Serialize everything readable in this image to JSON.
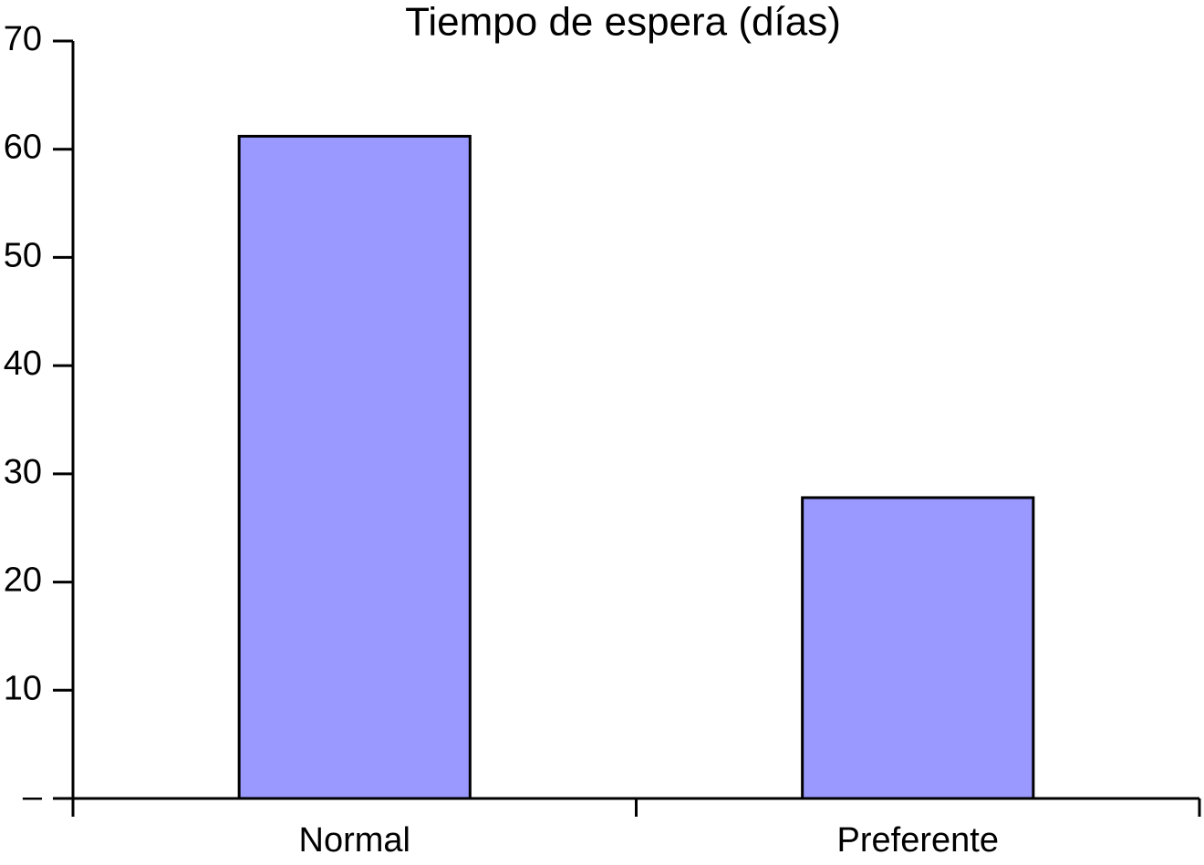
{
  "chart_data": {
    "type": "bar",
    "title": "Tiempo de espera (días)",
    "categories": [
      "Normal",
      "Preferente"
    ],
    "values": [
      61.2,
      27.8
    ],
    "color": "#9999ff",
    "ylim": [
      0,
      70
    ],
    "yticks": [
      {
        "value": 0,
        "label": "–"
      },
      10,
      20,
      30,
      40,
      50,
      60,
      70
    ],
    "grid": false
  }
}
